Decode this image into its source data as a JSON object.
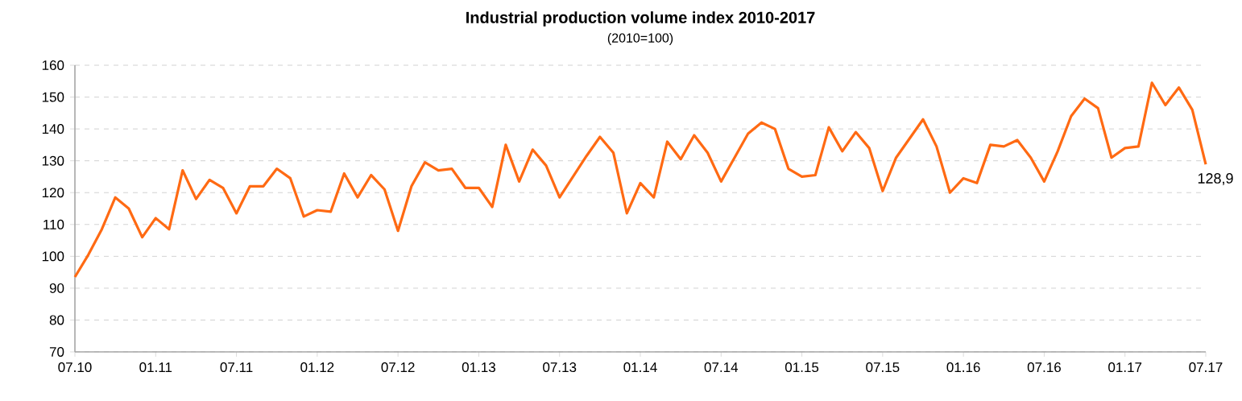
{
  "chart_data": {
    "type": "line",
    "title": "Industrial production volume index 2010-2017",
    "subtitle": "(2010=100)",
    "x": [
      "2010-07",
      "2010-08",
      "2010-09",
      "2010-10",
      "2010-11",
      "2010-12",
      "2011-01",
      "2011-02",
      "2011-03",
      "2011-04",
      "2011-05",
      "2011-06",
      "2011-07",
      "2011-08",
      "2011-09",
      "2011-10",
      "2011-11",
      "2011-12",
      "2012-01",
      "2012-02",
      "2012-03",
      "2012-04",
      "2012-05",
      "2012-06",
      "2012-07",
      "2012-08",
      "2012-09",
      "2012-10",
      "2012-11",
      "2012-12",
      "2013-01",
      "2013-02",
      "2013-03",
      "2013-04",
      "2013-05",
      "2013-06",
      "2013-07",
      "2013-08",
      "2013-09",
      "2013-10",
      "2013-11",
      "2013-12",
      "2014-01",
      "2014-02",
      "2014-03",
      "2014-04",
      "2014-05",
      "2014-06",
      "2014-07",
      "2014-08",
      "2014-09",
      "2014-10",
      "2014-11",
      "2014-12",
      "2015-01",
      "2015-02",
      "2015-03",
      "2015-04",
      "2015-05",
      "2015-06",
      "2015-07",
      "2015-08",
      "2015-09",
      "2015-10",
      "2015-11",
      "2015-12",
      "2016-01",
      "2016-02",
      "2016-03",
      "2016-04",
      "2016-05",
      "2016-06",
      "2016-07",
      "2016-08",
      "2016-09",
      "2016-10",
      "2016-11",
      "2016-12",
      "2017-01",
      "2017-02",
      "2017-03",
      "2017-04",
      "2017-05",
      "2017-06",
      "2017-07"
    ],
    "series": [
      {
        "color": "#ff6a13",
        "values": [
          93.5,
          100.5,
          108.5,
          118.5,
          115,
          106,
          112,
          108.5,
          127,
          118,
          124,
          121.5,
          113.5,
          122,
          122,
          127.5,
          124.5,
          112.5,
          114.5,
          114,
          126,
          118.5,
          125.5,
          121,
          108,
          122,
          129.5,
          127,
          127.5,
          121.5,
          121.5,
          115.5,
          135,
          123.5,
          133.5,
          128.5,
          118.5,
          125,
          131.5,
          137.5,
          132.5,
          113.5,
          123,
          118.5,
          136,
          130.5,
          138,
          132.5,
          123.5,
          131,
          138.5,
          142,
          140,
          127.5,
          125,
          125.5,
          140.5,
          133,
          139,
          134,
          120.5,
          131,
          137,
          143,
          134.5,
          120,
          124.5,
          123,
          135,
          134.5,
          136.5,
          131,
          123.5,
          133,
          144,
          149.5,
          146.5,
          131,
          134,
          134.5,
          154.5,
          147.5,
          153,
          146,
          128.9
        ]
      }
    ],
    "xlim": [
      "2010-07",
      "2017-07"
    ],
    "xticks": [
      {
        "value": "2010-07",
        "label": "07.10"
      },
      {
        "value": "2011-01",
        "label": "01.11"
      },
      {
        "value": "2011-07",
        "label": "07.11"
      },
      {
        "value": "2012-01",
        "label": "01.12"
      },
      {
        "value": "2012-07",
        "label": "07.12"
      },
      {
        "value": "2013-01",
        "label": "01.13"
      },
      {
        "value": "2013-07",
        "label": "07.13"
      },
      {
        "value": "2014-01",
        "label": "01.14"
      },
      {
        "value": "2014-07",
        "label": "07.14"
      },
      {
        "value": "2015-01",
        "label": "01.15"
      },
      {
        "value": "2015-07",
        "label": "07.15"
      },
      {
        "value": "2016-01",
        "label": "01.16"
      },
      {
        "value": "2016-07",
        "label": "07.16"
      },
      {
        "value": "2017-01",
        "label": "01.17"
      },
      {
        "value": "2017-07",
        "label": "07.17"
      }
    ],
    "ylim": [
      70,
      160
    ],
    "yticks": [
      70,
      80,
      90,
      100,
      110,
      120,
      130,
      140,
      150,
      160
    ],
    "grid": "y",
    "line_style": "solid",
    "marker": "none",
    "annotations": [
      {
        "text": "128,9",
        "x": "2017-07",
        "y": 128.9
      }
    ]
  }
}
